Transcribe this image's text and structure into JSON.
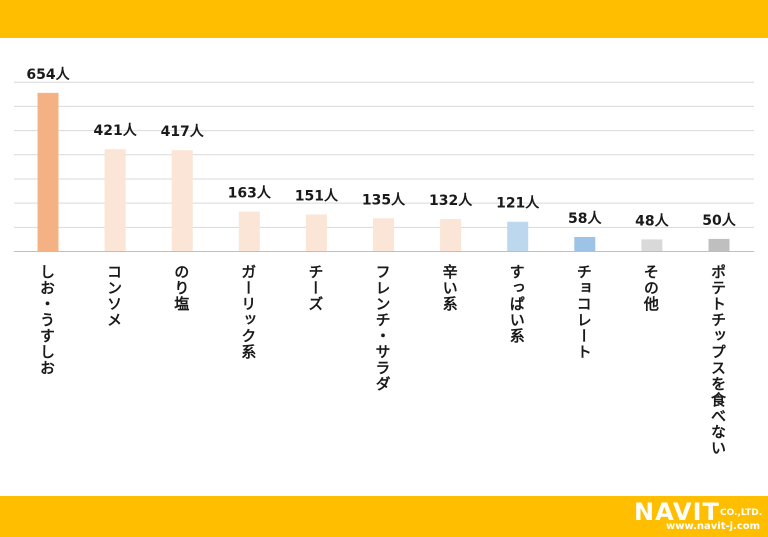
{
  "chart_data": {
    "type": "bar",
    "categories": [
      "しお・うすしお",
      "コンソメ",
      "のり塩",
      "ガーリック系",
      "チーズ",
      "フレンチ・サラダ",
      "辛い系",
      "すっぱい系",
      "チョコレート",
      "その他",
      "ポテトチップスを食べない"
    ],
    "values": [
      654,
      421,
      417,
      163,
      151,
      135,
      132,
      121,
      58,
      48,
      50
    ],
    "value_labels": [
      "654人",
      "421人",
      "417人",
      "163人",
      "151人",
      "135人",
      "132人",
      "121人",
      "58人",
      "48人",
      "50人"
    ],
    "unit": "人",
    "ylim": [
      0,
      700
    ],
    "grid": true,
    "colors": [
      "#F4B183",
      "#FBE5D6",
      "#FBE5D6",
      "#FBE5D6",
      "#FBE5D6",
      "#FBE5D6",
      "#FBE5D6",
      "#BDD7EE",
      "#9DC3E6",
      "#D9D9D9",
      "#BFBFBF"
    ]
  },
  "header": {
    "bar_color": "#FFBF00"
  },
  "footer": {
    "bar_color": "#FFBF00",
    "logo_text": "NAVIT",
    "logo_suffix": "CO.,LTD.",
    "logo_url": "www.navit-j.com"
  }
}
